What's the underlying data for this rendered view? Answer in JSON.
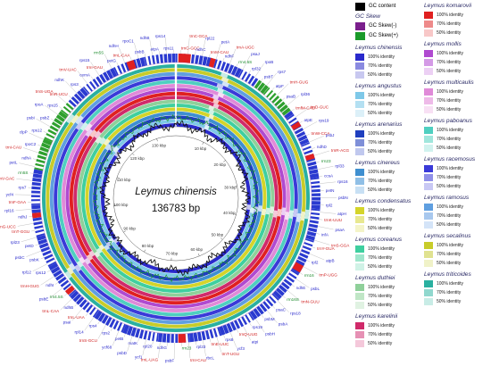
{
  "genome": {
    "name": "Leymus chinensis",
    "size": "136783 bp"
  },
  "ruler": [
    "10 kbp",
    "20 kbp",
    "30 kbp",
    "40 kbp",
    "50 kbp",
    "60 kbp",
    "70 kbp",
    "80 kbp",
    "90 kbp",
    "100 kbp",
    "110 kbp",
    "120 kbp",
    "130 kbp"
  ],
  "legend": {
    "gc_content": "GC content",
    "gc_skew_title": "GC Skew",
    "gc_skew_neg": "GC Skew(-)",
    "gc_skew_pos": "GC Skew(+)",
    "identity_levels": [
      "100% identity",
      "70% identity",
      "50% identity"
    ],
    "colors": {
      "gc_content": "#000000",
      "gc_skew_neg": "#7a1f8c",
      "gc_skew_pos": "#1a9a2a"
    }
  },
  "species_col1": [
    {
      "name": "Leymus chinensis",
      "colors": [
        "#2a2acc",
        "#8a8ae0",
        "#c8c8f0"
      ]
    },
    {
      "name": "Leymus angustus",
      "colors": [
        "#7ec8e8",
        "#b4e0f2",
        "#dcf0f8"
      ]
    },
    {
      "name": "Leymus arenarius",
      "colors": [
        "#1f3fbf",
        "#7f8fd8",
        "#c0c8ee"
      ]
    },
    {
      "name": "Leymus cinereus",
      "colors": [
        "#3f8fd0",
        "#90bfe6",
        "#c8e0f4"
      ]
    },
    {
      "name": "Leymus condensatus",
      "colors": [
        "#d4d42a",
        "#e8e890",
        "#f4f4c8"
      ]
    },
    {
      "name": "Leymus coreanus",
      "colors": [
        "#3fcf9f",
        "#9fe6cc",
        "#d0f2e6"
      ]
    },
    {
      "name": "Leymus duthiei",
      "colors": [
        "#8fd09a",
        "#c0e6c6",
        "#e0f2e2"
      ]
    },
    {
      "name": "Leymus karelinii",
      "colors": [
        "#d02a6a",
        "#e690b4",
        "#f4c8da"
      ]
    }
  ],
  "species_col2": [
    {
      "name": "Leymus komarovii",
      "colors": [
        "#e02020",
        "#ee8a8a",
        "#f8c8c8"
      ]
    },
    {
      "name": "Leymus mollis",
      "colors": [
        "#b04ad0",
        "#d49ae6",
        "#ecd0f4"
      ]
    },
    {
      "name": "Leymus multicaulis",
      "colors": [
        "#e08ad8",
        "#eebae8",
        "#f8e0f4"
      ]
    },
    {
      "name": "Leymus paboanus",
      "colors": [
        "#4fcfc0",
        "#a0e6dc",
        "#d0f2ee"
      ]
    },
    {
      "name": "Leymus racemosus",
      "colors": [
        "#3a3ad8",
        "#9090e8",
        "#c8c8f4"
      ]
    },
    {
      "name": "Leymus ramosus",
      "colors": [
        "#5f9fe0",
        "#a8c8ee",
        "#d4e4f8"
      ]
    },
    {
      "name": "Leymus secalinus",
      "colors": [
        "#c8cc2a",
        "#e0e290",
        "#f0f2c8"
      ]
    },
    {
      "name": "Leymus triticoides",
      "colors": [
        "#2ab0a0",
        "#90d8ce",
        "#c8ece6"
      ]
    }
  ],
  "genes_blue": [
    "rps16",
    "psbA",
    "matK",
    "psbK",
    "psbI",
    "atpA",
    "atpF",
    "atpH",
    "atpI",
    "rps2",
    "rpoC2",
    "rpoC1",
    "rpoB",
    "petN",
    "psbM",
    "psbD",
    "psbC",
    "psbZ",
    "rps14",
    "psaB",
    "psaA",
    "ycf3",
    "rps4",
    "ndhJ",
    "ndhK",
    "ndhC",
    "atpE",
    "atpB",
    "rbcL",
    "psaI",
    "ycf4",
    "cemA",
    "petA",
    "psbJ",
    "psbL",
    "psbF",
    "psbE",
    "petL",
    "petG",
    "psaJ",
    "rpl33",
    "rps18",
    "rpl20",
    "rps12",
    "clpP",
    "psbB",
    "psbT",
    "psbN",
    "psbH",
    "petB",
    "petD",
    "rpoA",
    "rps11",
    "rpl36",
    "infA",
    "rps8",
    "rpl14",
    "rpl16",
    "rps3",
    "rpl22",
    "rps19",
    "rpl2",
    "rpl23",
    "ndhB",
    "rps7",
    "rps15",
    "ndhF",
    "ndhD",
    "ndhE",
    "ndhG",
    "ndhI",
    "ndhA",
    "ndhH",
    "rpl32",
    "ccsA",
    "psaC",
    "ycf1",
    "rpl12",
    "rps12",
    "ndhB",
    "rps7",
    "rpl2",
    "rps19",
    "ycf68",
    "rpl23",
    "rps15"
  ],
  "genes_red": [
    "trnH-GUG",
    "trnK-UUU",
    "trnQ-UUG",
    "trnS-GCU",
    "trnG-UCC",
    "trnR-UCU",
    "trnC-GCA",
    "trnD-GUC",
    "trnY-GUA",
    "trnE-UUC",
    "trnT-GGU",
    "trnS-UGA",
    "trnG-GCC",
    "trnfM-CAU",
    "trnS-GGA",
    "trnT-UGU",
    "trnL-UAA",
    "trnF-GAA",
    "trnV-UAC",
    "trnM-CAU",
    "trnW-CCA",
    "trnP-UGG",
    "trnI-CAU",
    "trnL-CAA",
    "trnV-GAC",
    "trnI-GAU",
    "trnA-UGC",
    "trnR-ACG",
    "trnN-GUU",
    "trnL-UAG",
    "trnH-GUG",
    "trnI-CAU",
    "trnL-CAA"
  ],
  "genes_green": [
    "rrn16",
    "rrn23",
    "rrn4.5S",
    "rrn5S",
    "rrn5S",
    "rrn4.5S",
    "rrn23",
    "rrn16S"
  ]
}
